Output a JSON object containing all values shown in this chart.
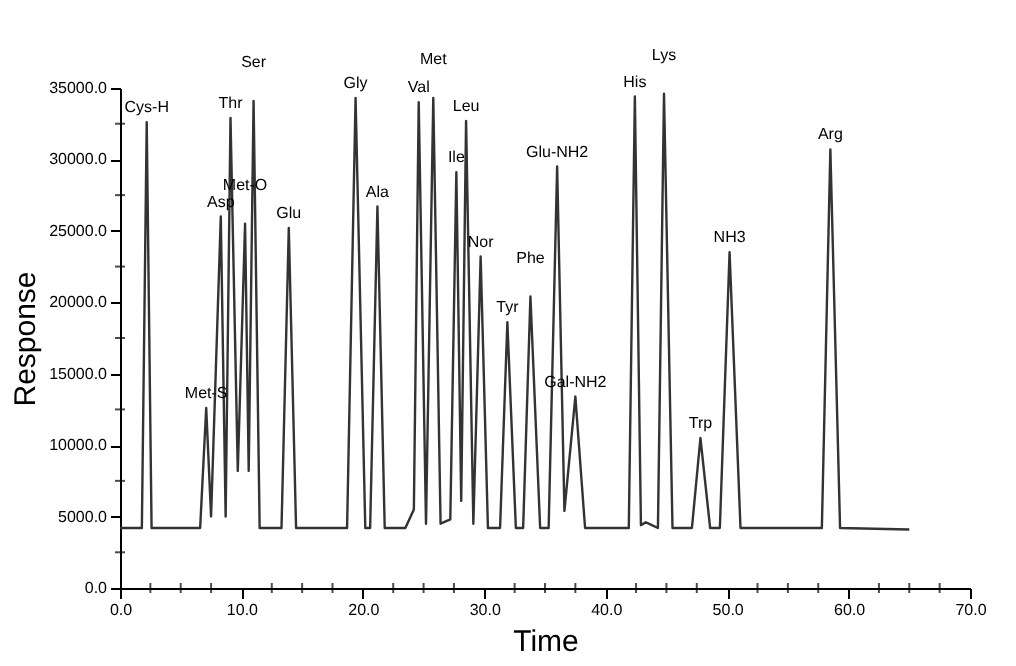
{
  "chart_data": {
    "type": "line",
    "xlabel": "Time",
    "ylabel": "Response",
    "x": [
      0,
      1.8,
      2.2,
      2.6,
      6.6,
      7.1,
      7.5,
      8.3,
      8.7,
      9.1,
      9.7,
      10.3,
      10.6,
      11.0,
      11.5,
      13.3,
      13.9,
      14.5,
      18.7,
      19.4,
      20.2,
      20.6,
      21.2,
      21.8,
      23.5,
      24.2,
      24.6,
      25.2,
      25.8,
      26.4,
      27.2,
      27.7,
      28.1,
      28.5,
      29.1,
      29.7,
      30.3,
      31.3,
      31.9,
      32.6,
      33.2,
      33.8,
      34.6,
      35.3,
      36.0,
      36.6,
      37.5,
      38.3,
      41.9,
      42.4,
      42.9,
      43.3,
      43.8,
      44.3,
      44.8,
      45.5,
      47.1,
      47.8,
      48.6,
      49.4,
      50.2,
      51.1,
      57.8,
      58.5,
      59.3,
      65.0
    ],
    "series": [
      {
        "color": "#333333",
        "values": [
          4200,
          4200,
          32600,
          4200,
          4200,
          12600,
          5000,
          26000,
          5000,
          32900,
          8200,
          25500,
          8200,
          34100,
          4200,
          4200,
          25200,
          4200,
          4200,
          34300,
          4200,
          4200,
          26700,
          4200,
          4200,
          5500,
          34000,
          4500,
          34300,
          4500,
          4800,
          29100,
          6100,
          32700,
          4500,
          23200,
          4200,
          4200,
          18600,
          4200,
          4200,
          20400,
          4200,
          4200,
          29500,
          5400,
          13400,
          4200,
          4200,
          34400,
          4400,
          4600,
          4400,
          4200,
          34600,
          4200,
          4200,
          10500,
          4200,
          4200,
          23500,
          4200,
          4200,
          30700,
          4200,
          4100
        ]
      }
    ],
    "xlim": [
      0,
      70
    ],
    "ylim": [
      0,
      35000
    ],
    "xticks": [
      {
        "value": 0,
        "label": "0.0"
      },
      {
        "value": 2.5,
        "label": null
      },
      {
        "value": 5,
        "label": null
      },
      {
        "value": 7.5,
        "label": null
      },
      {
        "value": 10,
        "label": "10.0"
      },
      {
        "value": 12.5,
        "label": null
      },
      {
        "value": 15,
        "label": null
      },
      {
        "value": 17.5,
        "label": null
      },
      {
        "value": 20,
        "label": "20.0"
      },
      {
        "value": 22.5,
        "label": null
      },
      {
        "value": 25,
        "label": null
      },
      {
        "value": 27.5,
        "label": null
      },
      {
        "value": 30,
        "label": "30.0"
      },
      {
        "value": 32.5,
        "label": null
      },
      {
        "value": 35,
        "label": null
      },
      {
        "value": 37.5,
        "label": null
      },
      {
        "value": 40,
        "label": "40.0"
      },
      {
        "value": 42.5,
        "label": null
      },
      {
        "value": 45,
        "label": null
      },
      {
        "value": 47.5,
        "label": null
      },
      {
        "value": 50,
        "label": "50.0"
      },
      {
        "value": 52.5,
        "label": null
      },
      {
        "value": 55,
        "label": null
      },
      {
        "value": 57.5,
        "label": null
      },
      {
        "value": 60,
        "label": "60.0"
      },
      {
        "value": 62.5,
        "label": null
      },
      {
        "value": 65,
        "label": null
      },
      {
        "value": 67.5,
        "label": null
      },
      {
        "value": 70,
        "label": "70.0"
      }
    ],
    "yticks": [
      {
        "value": 0,
        "label": "0.0"
      },
      {
        "value": 2500,
        "label": null
      },
      {
        "value": 5000,
        "label": "5000.0"
      },
      {
        "value": 7500,
        "label": null
      },
      {
        "value": 10000,
        "label": "10000.0"
      },
      {
        "value": 12500,
        "label": null
      },
      {
        "value": 15000,
        "label": "15000.0"
      },
      {
        "value": 17500,
        "label": null
      },
      {
        "value": 20000,
        "label": "20000.0"
      },
      {
        "value": 22500,
        "label": null
      },
      {
        "value": 25000,
        "label": "25000.0"
      },
      {
        "value": 27500,
        "label": null
      },
      {
        "value": 30000,
        "label": "30000.0"
      },
      {
        "value": 32500,
        "label": null
      },
      {
        "value": 35000,
        "label": "35000.0"
      }
    ],
    "grid": false,
    "marker": "none",
    "line_style": "solid",
    "annotations": [
      {
        "text": "Cys-H",
        "x": 2.2,
        "y": 32600
      },
      {
        "text": "Met-S",
        "x": 7.1,
        "y": 12600
      },
      {
        "text": "Asp",
        "x": 8.3,
        "y": 26000
      },
      {
        "text": "Thr",
        "x": 9.1,
        "y": 32900
      },
      {
        "text": "Met-O",
        "x": 10.3,
        "y": 25500
      },
      {
        "text": "Ser",
        "x": 11.0,
        "y": 34100
      },
      {
        "text": "Glu",
        "x": 13.9,
        "y": 25200
      },
      {
        "text": "Gly",
        "x": 19.4,
        "y": 34300
      },
      {
        "text": "Ala",
        "x": 21.2,
        "y": 26700
      },
      {
        "text": "Val",
        "x": 24.6,
        "y": 34000
      },
      {
        "text": "Met",
        "x": 25.8,
        "y": 34300
      },
      {
        "text": "Ile",
        "x": 27.7,
        "y": 29100
      },
      {
        "text": "Leu",
        "x": 28.5,
        "y": 32700
      },
      {
        "text": "Nor",
        "x": 29.7,
        "y": 23200
      },
      {
        "text": "Tyr",
        "x": 31.9,
        "y": 18600
      },
      {
        "text": "Phe",
        "x": 33.8,
        "y": 20400
      },
      {
        "text": "Glu-NH2",
        "x": 36.0,
        "y": 29500
      },
      {
        "text": "Gal-NH2",
        "x": 37.5,
        "y": 13400
      },
      {
        "text": "His",
        "x": 42.4,
        "y": 34400
      },
      {
        "text": "Lys",
        "x": 44.8,
        "y": 34600
      },
      {
        "text": "Trp",
        "x": 47.8,
        "y": 10500
      },
      {
        "text": "NH3",
        "x": 50.2,
        "y": 23500
      },
      {
        "text": "Arg",
        "x": 58.5,
        "y": 30700
      }
    ]
  }
}
